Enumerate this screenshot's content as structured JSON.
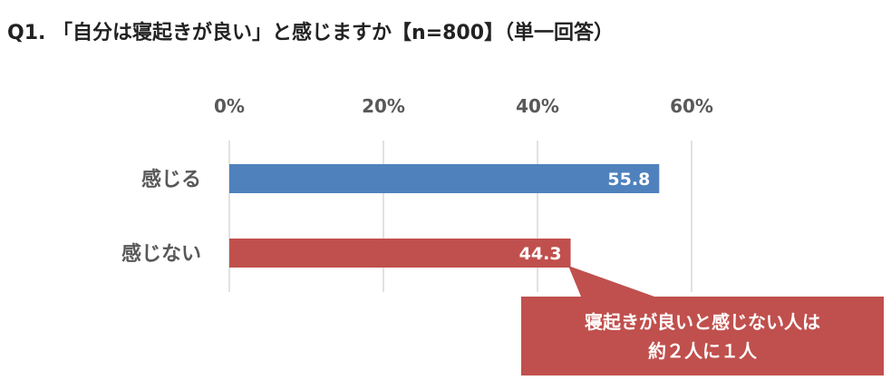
{
  "title": "Q1. 「自分は寝起きが良い」と感じますか【n=800】（単一回答）",
  "chart_data": {
    "type": "bar",
    "orientation": "horizontal",
    "categories": [
      "感じる",
      "感じない"
    ],
    "values": [
      55.8,
      44.3
    ],
    "data_labels": [
      "55.8",
      "44.3"
    ],
    "colors": [
      "#4f81bd",
      "#c0504d"
    ],
    "xlim": [
      0,
      60
    ],
    "x_ticks": [
      0,
      20,
      40,
      60
    ],
    "x_tick_labels": [
      "0%",
      "20%",
      "40%",
      "60%"
    ],
    "x_axis_position": "top",
    "grid": true
  },
  "callout": {
    "line1": "寝起きが良いと感じない人は",
    "line2": "約２人に１人",
    "color": "#c0504d"
  }
}
